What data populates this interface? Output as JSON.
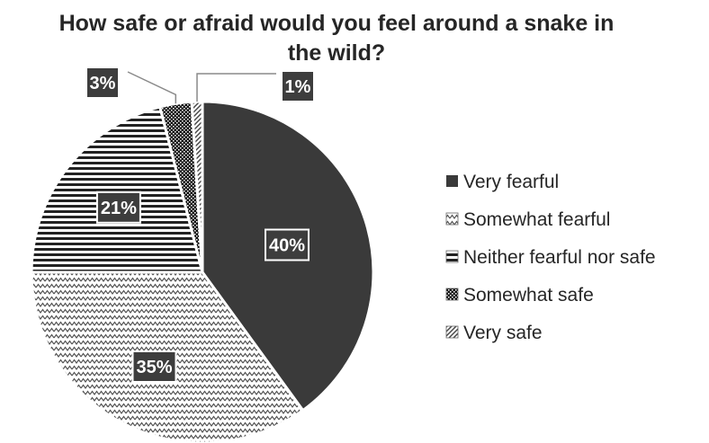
{
  "chart_data": {
    "type": "pie",
    "title": "How safe or afraid would you feel around a snake in the wild?",
    "title_lines": [
      "How safe or afraid would you feel around a snake in",
      "the wild?"
    ],
    "categories": [
      "Very fearful",
      "Somewhat fearful",
      "Neither fearful nor safe",
      "Somewhat safe",
      "Very safe"
    ],
    "values": [
      40,
      35,
      21,
      3,
      1
    ],
    "data_labels": [
      "40%",
      "35%",
      "21%",
      "3%",
      "1%"
    ],
    "value_unit": "%",
    "legend_position": "right",
    "start_angle": "12 o'clock",
    "direction": "clockwise",
    "slice_fills": [
      {
        "pattern": "solid",
        "color": "#3a3a3a"
      },
      {
        "pattern": "zigzag",
        "color": "#555555"
      },
      {
        "pattern": "horizontal-lines",
        "color": "#222222"
      },
      {
        "pattern": "checker",
        "color": "#111111"
      },
      {
        "pattern": "diagonal-lines",
        "color": "#444444"
      }
    ],
    "label_box_color": "#3d3d3d",
    "label_text_color": "#ffffff",
    "title_color": "#262626"
  }
}
